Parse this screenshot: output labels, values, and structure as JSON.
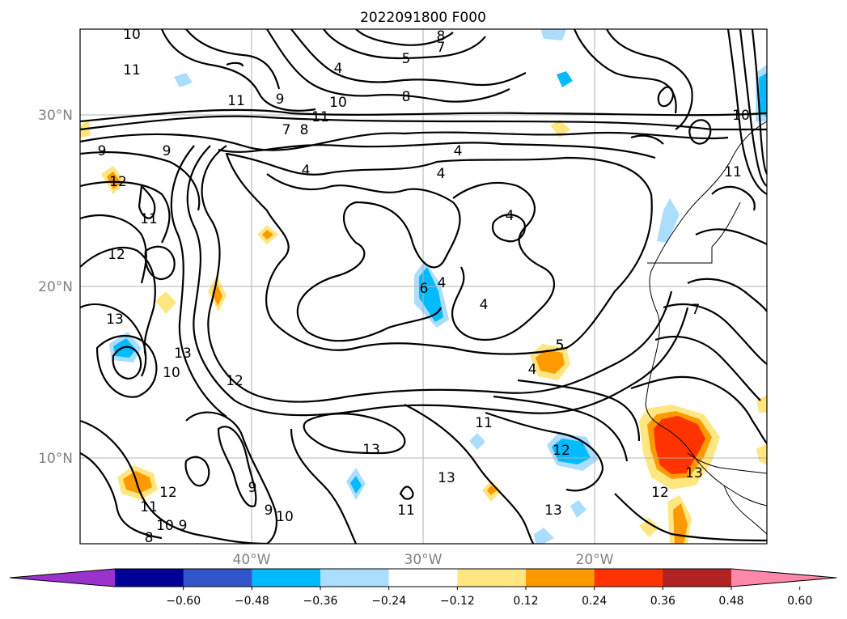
{
  "title": "2022091800 F000",
  "lat_labels": [
    "30°N",
    "20°N",
    "10°N"
  ],
  "lon_labels": [
    "40°W",
    "30°W",
    "20°W"
  ],
  "colorbar": {
    "ticks": [
      "−0.60",
      "−0.48",
      "−0.36",
      "−0.24",
      "−0.12",
      "0.12",
      "0.24",
      "0.36",
      "0.48",
      "0.60"
    ],
    "colors": [
      "#9933cc",
      "#000099",
      "#3355cc",
      "#00bbff",
      "#aaddff",
      "#ffffff",
      "#ffe680",
      "#ff9900",
      "#ff3300",
      "#b22222",
      "#ff88aa"
    ]
  },
  "contour_labels": [
    "10",
    "11",
    "11",
    "13",
    "12",
    "11",
    "10",
    "9",
    "8",
    "12",
    "12",
    "10",
    "13",
    "9",
    "10",
    "9",
    "12",
    "13",
    "9",
    "11",
    "13",
    "13",
    "11",
    "13",
    "12",
    "4",
    "4",
    "4",
    "4",
    "4",
    "4",
    "4",
    "5",
    "6",
    "4",
    "5",
    "7",
    "8",
    "11",
    "10",
    "9",
    "9",
    "11",
    "8",
    "7",
    "8",
    "10",
    "12",
    "7",
    "5",
    "11"
  ]
}
